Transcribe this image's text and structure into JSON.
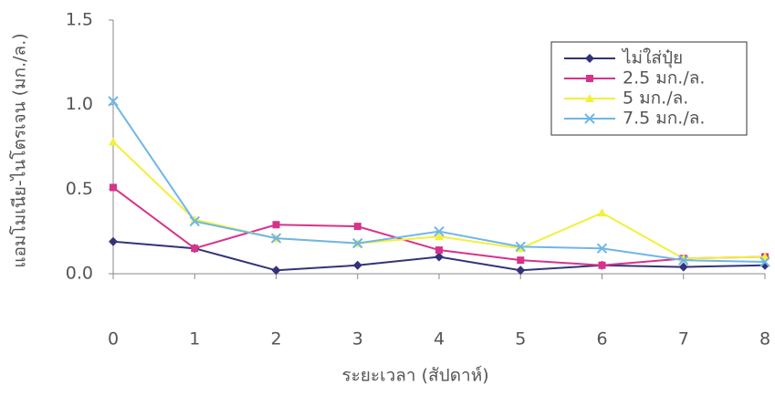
{
  "chart_data": {
    "type": "line",
    "x_label": "ระยะเวลา (สัปดาห์)",
    "y_label": "แอมโมเนีย-ไนโตรเจน (มก./ล.)",
    "x": [
      0,
      1,
      2,
      3,
      4,
      5,
      6,
      7,
      8
    ],
    "xlim": [
      0,
      8
    ],
    "xticks": [
      0,
      1,
      2,
      3,
      4,
      5,
      6,
      7,
      8
    ],
    "ylim": [
      0,
      1.5
    ],
    "yticks": [
      {
        "value": 0,
        "label": "0.0"
      },
      {
        "value": 0.5,
        "label": "0.5"
      },
      {
        "value": 1,
        "label": "1.0"
      },
      {
        "value": 1.5,
        "label": "1.5"
      }
    ],
    "legend": "upper right",
    "series": [
      {
        "name": "ไม่ใส่ปุ๋ย",
        "color": "#33337a",
        "marker": "diamond",
        "values": [
          0.19,
          0.15,
          0.02,
          0.05,
          0.1,
          0.02,
          0.05,
          0.04,
          0.05
        ]
      },
      {
        "name": "2.5 มก./ล.",
        "color": "#d6338a",
        "marker": "square",
        "values": [
          0.51,
          0.15,
          0.29,
          0.28,
          0.14,
          0.08,
          0.05,
          0.09,
          0.1
        ]
      },
      {
        "name": "5 มก./ล.",
        "color": "#f2f03a",
        "marker": "triangle",
        "values": [
          0.78,
          0.32,
          0.21,
          0.18,
          0.22,
          0.15,
          0.36,
          0.09,
          0.1
        ]
      },
      {
        "name": "7.5 มก./ล.",
        "color": "#6fb6e8",
        "marker": "x",
        "values": [
          1.02,
          0.31,
          0.21,
          0.18,
          0.25,
          0.16,
          0.15,
          0.08,
          0.07
        ]
      }
    ]
  }
}
